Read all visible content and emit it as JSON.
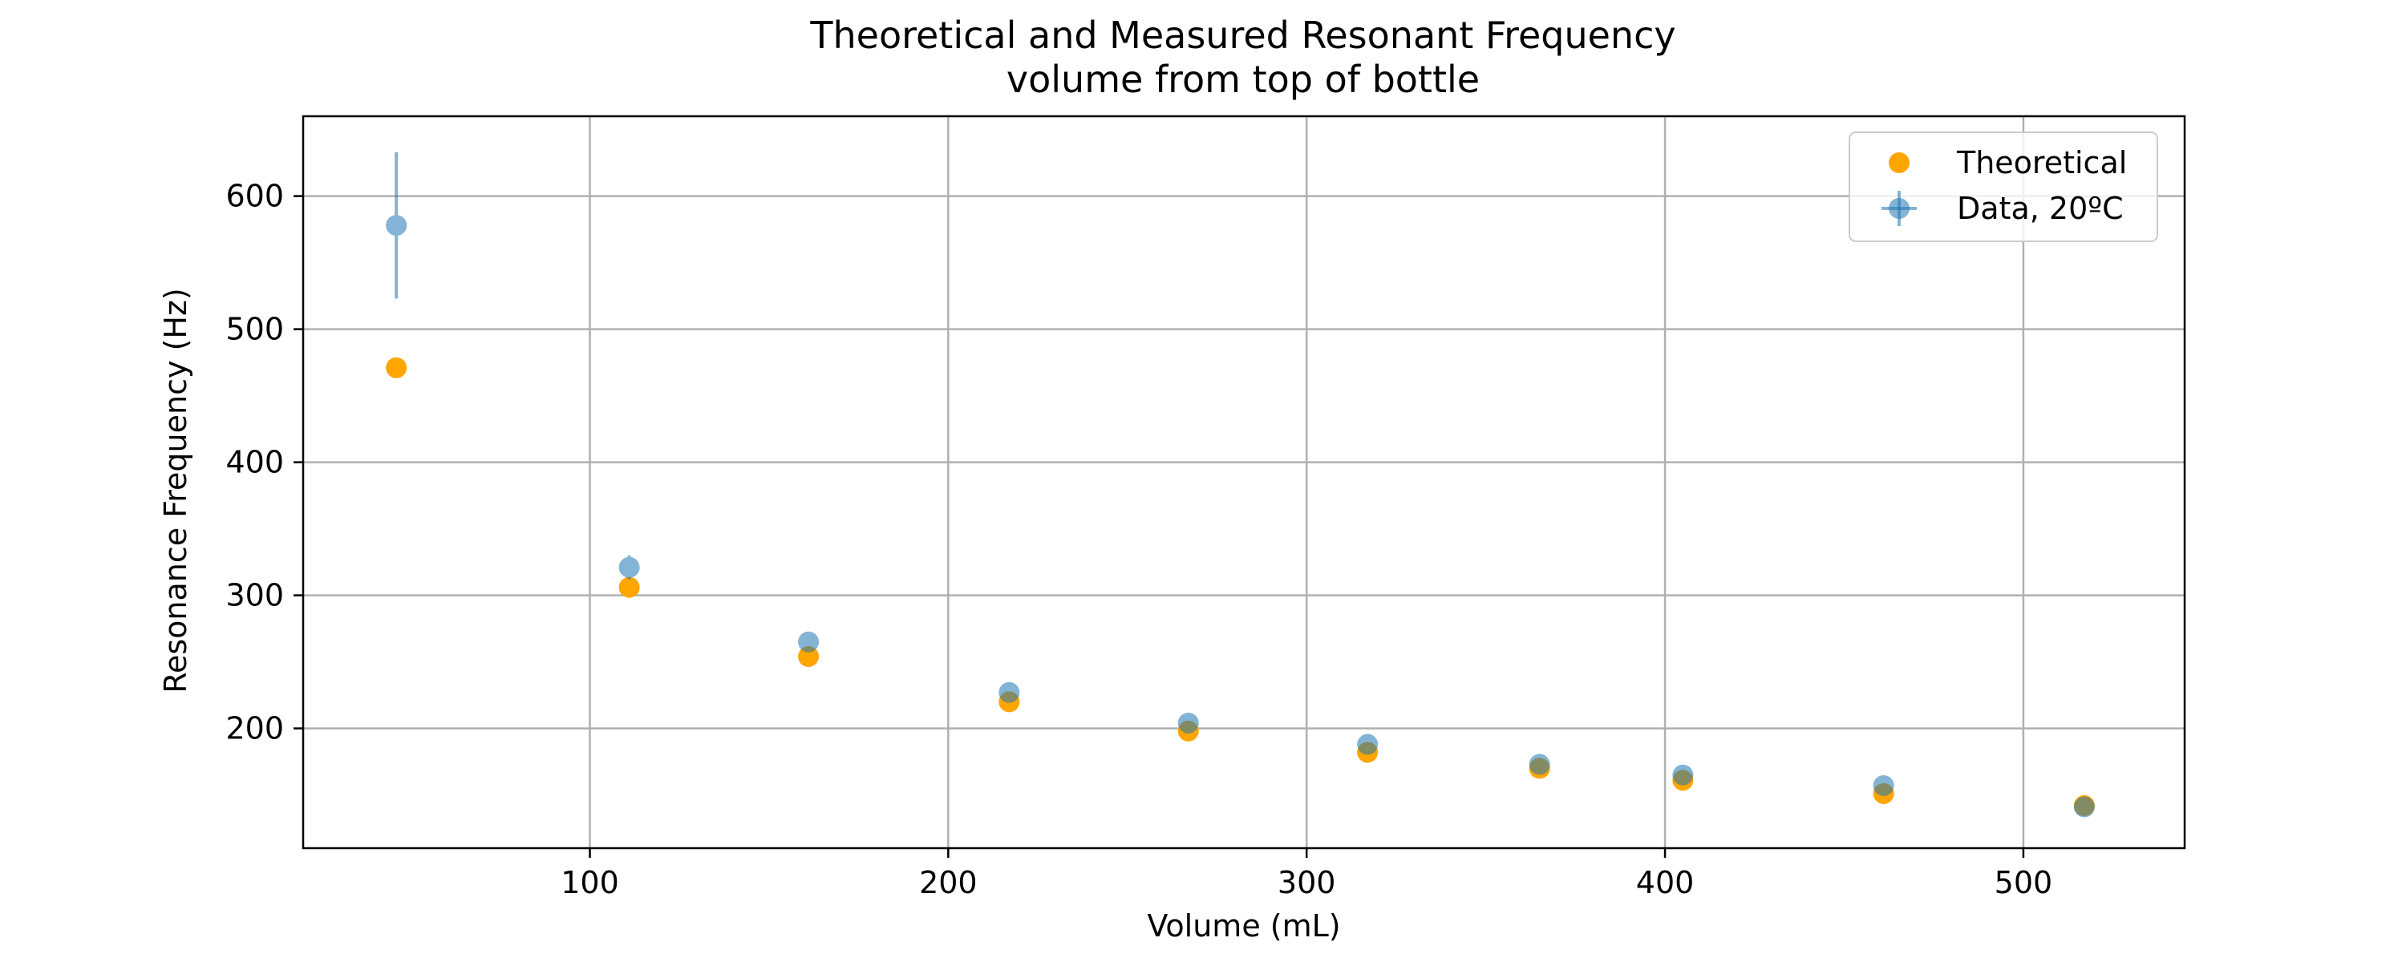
{
  "chart_data": {
    "type": "scatter",
    "title": "Theoretical and Measured Resonant Frequency",
    "subtitle": "volume from top of bottle",
    "xlabel": "Volume (mL)",
    "ylabel": "Resonance Frequency (Hz)",
    "xlim": [
      20,
      545
    ],
    "ylim": [
      110,
      660
    ],
    "xticks": [
      100,
      200,
      300,
      400,
      500
    ],
    "yticks": [
      200,
      300,
      400,
      500,
      600
    ],
    "grid": true,
    "legend_position": "top-right",
    "series": [
      {
        "name": "Theoretical",
        "color": "#ffa500",
        "x": [
          46,
          111,
          161,
          217,
          267,
          317,
          365,
          405,
          461,
          517
        ],
        "y": [
          471,
          306,
          254,
          220,
          198,
          182,
          170,
          161,
          151,
          142
        ]
      },
      {
        "name": "Data, 20ºC",
        "color": "#1f77b4",
        "x": [
          46,
          111,
          161,
          217,
          267,
          317,
          365,
          405,
          461,
          517
        ],
        "y": [
          578,
          321,
          265,
          227,
          204,
          188,
          173,
          165,
          157,
          141
        ],
        "yerr": [
          55,
          9,
          7,
          5,
          4,
          3,
          3,
          2,
          2,
          2
        ],
        "xerr": [
          2,
          2,
          2,
          2,
          2,
          2,
          2,
          2,
          2,
          2
        ]
      }
    ]
  }
}
